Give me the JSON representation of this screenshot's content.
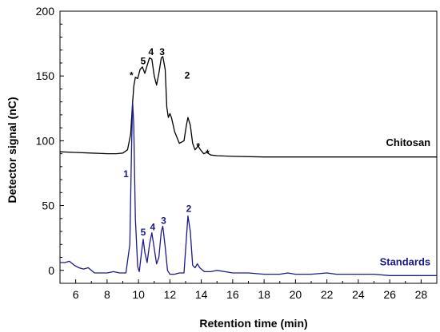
{
  "chart_data": {
    "type": "line",
    "xlabel": "Retention time (min)",
    "ylabel": "Detector signal (nC)",
    "xlim": [
      5,
      29
    ],
    "ylim": [
      -10,
      200
    ],
    "x_ticks": [
      6,
      8,
      10,
      12,
      14,
      16,
      18,
      20,
      22,
      24,
      26,
      28
    ],
    "y_ticks": [
      0,
      50,
      100,
      150,
      200
    ],
    "grid": false,
    "series": [
      {
        "name": "Chitosan",
        "color": "#000000",
        "points": [
          [
            5.0,
            91.5
          ],
          [
            6.0,
            91
          ],
          [
            7.0,
            90.5
          ],
          [
            8.0,
            90
          ],
          [
            8.6,
            90
          ],
          [
            9.0,
            90.5
          ],
          [
            9.3,
            93
          ],
          [
            9.5,
            105
          ],
          [
            9.6,
            125
          ],
          [
            9.7,
            142
          ],
          [
            9.8,
            149
          ],
          [
            9.95,
            148
          ],
          [
            10.1,
            155
          ],
          [
            10.25,
            157
          ],
          [
            10.4,
            152
          ],
          [
            10.55,
            158
          ],
          [
            10.7,
            164
          ],
          [
            10.85,
            163
          ],
          [
            11.0,
            150
          ],
          [
            11.15,
            143
          ],
          [
            11.3,
            152
          ],
          [
            11.45,
            164
          ],
          [
            11.55,
            165
          ],
          [
            11.7,
            155
          ],
          [
            11.8,
            126
          ],
          [
            11.9,
            118
          ],
          [
            12.0,
            121
          ],
          [
            12.1,
            118
          ],
          [
            12.3,
            107
          ],
          [
            12.6,
            98
          ],
          [
            12.9,
            100
          ],
          [
            13.05,
            112
          ],
          [
            13.15,
            118
          ],
          [
            13.3,
            112
          ],
          [
            13.45,
            98
          ],
          [
            13.6,
            93
          ],
          [
            13.8,
            96
          ],
          [
            13.95,
            93
          ],
          [
            14.15,
            90
          ],
          [
            14.35,
            91
          ],
          [
            14.6,
            89
          ],
          [
            15.0,
            88.5
          ],
          [
            16.0,
            88
          ],
          [
            18.0,
            87.5
          ],
          [
            20.0,
            87.5
          ],
          [
            22.0,
            87.5
          ],
          [
            24.0,
            87.5
          ],
          [
            26.0,
            87.5
          ],
          [
            28.0,
            87.5
          ],
          [
            29.0,
            87.5
          ]
        ]
      },
      {
        "name": "Standards",
        "color": "#1a1a8c",
        "points": [
          [
            5.0,
            6
          ],
          [
            5.3,
            6
          ],
          [
            5.6,
            7
          ],
          [
            5.9,
            4
          ],
          [
            6.2,
            2
          ],
          [
            6.5,
            1
          ],
          [
            6.8,
            2
          ],
          [
            7.2,
            -2
          ],
          [
            7.6,
            -2
          ],
          [
            8.0,
            -2
          ],
          [
            8.4,
            -1
          ],
          [
            8.8,
            -2
          ],
          [
            9.2,
            -2
          ],
          [
            9.45,
            20
          ],
          [
            9.55,
            90
          ],
          [
            9.62,
            131
          ],
          [
            9.7,
            112
          ],
          [
            9.8,
            40
          ],
          [
            9.95,
            3
          ],
          [
            10.05,
            -1
          ],
          [
            10.2,
            15
          ],
          [
            10.3,
            24
          ],
          [
            10.4,
            14
          ],
          [
            10.55,
            6
          ],
          [
            10.7,
            20
          ],
          [
            10.85,
            29
          ],
          [
            11.0,
            17
          ],
          [
            11.15,
            5
          ],
          [
            11.3,
            10
          ],
          [
            11.45,
            30
          ],
          [
            11.55,
            34
          ],
          [
            11.7,
            18
          ],
          [
            11.85,
            0
          ],
          [
            12.0,
            -3
          ],
          [
            12.3,
            -3
          ],
          [
            12.6,
            -2
          ],
          [
            12.9,
            -2
          ],
          [
            13.05,
            25
          ],
          [
            13.15,
            42
          ],
          [
            13.3,
            30
          ],
          [
            13.45,
            4
          ],
          [
            13.6,
            2
          ],
          [
            13.75,
            5
          ],
          [
            13.9,
            2
          ],
          [
            14.2,
            -1
          ],
          [
            14.6,
            -1
          ],
          [
            15.0,
            0
          ],
          [
            15.5,
            -1
          ],
          [
            16.0,
            -2
          ],
          [
            17.0,
            -2
          ],
          [
            18.0,
            -3
          ],
          [
            19.0,
            -3
          ],
          [
            19.5,
            -2
          ],
          [
            20.0,
            -3
          ],
          [
            21.0,
            -3
          ],
          [
            22.0,
            -2
          ],
          [
            22.6,
            -3
          ],
          [
            24.0,
            -3
          ],
          [
            25.0,
            -3
          ],
          [
            26.0,
            -4
          ],
          [
            27.0,
            -4
          ],
          [
            28.0,
            -4
          ],
          [
            29.0,
            -4
          ]
        ]
      }
    ],
    "series_labels": [
      {
        "text": "Chitosan",
        "x": 28.6,
        "y": 96,
        "anchor": "end",
        "color": "#000000"
      },
      {
        "text": "Standards",
        "x": 28.6,
        "y": 4,
        "anchor": "end",
        "color": "#1a1a8c"
      }
    ],
    "annotations": [
      {
        "text": "1",
        "x": 9.2,
        "y": 72,
        "color": "#1a1a8c"
      },
      {
        "text": "5",
        "x": 10.3,
        "y": 27,
        "color": "#1a1a8c"
      },
      {
        "text": "4",
        "x": 10.9,
        "y": 31,
        "color": "#1a1a8c"
      },
      {
        "text": "3",
        "x": 11.6,
        "y": 36,
        "color": "#1a1a8c"
      },
      {
        "text": "2",
        "x": 13.2,
        "y": 45,
        "color": "#1a1a8c"
      },
      {
        "text": "*",
        "x": 9.55,
        "y": 148,
        "color": "#000000"
      },
      {
        "text": "5",
        "x": 10.3,
        "y": 159,
        "color": "#000000"
      },
      {
        "text": "4",
        "x": 10.8,
        "y": 166,
        "color": "#000000"
      },
      {
        "text": "3",
        "x": 11.5,
        "y": 166,
        "color": "#000000"
      },
      {
        "text": "2",
        "x": 13.1,
        "y": 148,
        "color": "#000000"
      },
      {
        "text": "*",
        "x": 13.8,
        "y": 93,
        "color": "#000000"
      },
      {
        "text": "*",
        "x": 14.4,
        "y": 88,
        "color": "#000000"
      }
    ]
  }
}
